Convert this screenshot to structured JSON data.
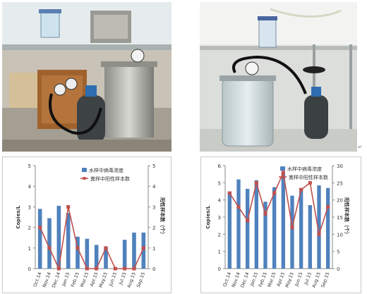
{
  "photos": {
    "left": {
      "description_icon": "sampler-apparatus-photo"
    },
    "right": {
      "description_icon": "sampler-apparatus-photo"
    }
  },
  "chart_data": [
    {
      "type": "bar",
      "categories": [
        "Oct.14",
        "Nov.14",
        "Dec.14",
        "Jan.15",
        "Feb.15",
        "Mar.15",
        "Apr.15",
        "May.15",
        "Jun.15",
        "Jul.15",
        "Aug.15",
        "Sep.15"
      ],
      "series": [
        {
          "name": "水样中病毒浓度",
          "type": "bar",
          "axis": "left",
          "color": "#4f81bd",
          "values": [
            2.9,
            2.45,
            3.05,
            2.7,
            1.55,
            1.45,
            1.15,
            1.05,
            0,
            1.4,
            1.75,
            1.75
          ]
        },
        {
          "name": "粪样中阳性样本数",
          "type": "line",
          "axis": "right",
          "color": "#c0504d",
          "values": [
            2,
            1,
            0,
            3,
            1,
            0,
            0,
            1,
            0,
            0,
            0,
            1
          ]
        }
      ],
      "ylabel_left": "Copies/L",
      "ylabel_right": "阳性样本数（个）",
      "ylim_left": [
        0,
        5
      ],
      "yticks_left": [
        0,
        1,
        2,
        3,
        4,
        5
      ],
      "ylim_right": [
        0,
        5
      ],
      "yticks_right": [
        0,
        1,
        2,
        3,
        4,
        5
      ],
      "legend_position": "top-right",
      "grid": false
    },
    {
      "type": "bar",
      "categories": [
        "Oct.14",
        "Nov.14",
        "Dec.14",
        "Jan.15",
        "Feb.15",
        "Mar.15",
        "Apr.15",
        "May.15",
        "Jun.15",
        "Jul.15",
        "Aug.15",
        "Sep.15"
      ],
      "series": [
        {
          "name": "水样中病毒浓度",
          "type": "bar",
          "axis": "left",
          "color": "#4f81bd",
          "values": [
            4.5,
            5.2,
            4.65,
            5.15,
            3.9,
            4.75,
            5.55,
            4.25,
            4.7,
            3.7,
            4.85,
            4.7
          ]
        },
        {
          "name": "粪样中阳性样本数",
          "type": "line",
          "axis": "right",
          "color": "#c0504d",
          "values": [
            22,
            18,
            14,
            25,
            16,
            22,
            28,
            12,
            23,
            25,
            10,
            18
          ]
        }
      ],
      "ylabel_left": "Copies/L",
      "ylabel_right": "阳性样本数（个）",
      "ylim_left": [
        0,
        6
      ],
      "yticks_left": [
        0,
        1,
        2,
        3,
        4,
        5,
        6
      ],
      "ylim_right": [
        0,
        30
      ],
      "yticks_right": [
        0,
        5,
        10,
        15,
        20,
        25,
        30
      ],
      "legend_position": "top-right",
      "grid": false
    }
  ]
}
